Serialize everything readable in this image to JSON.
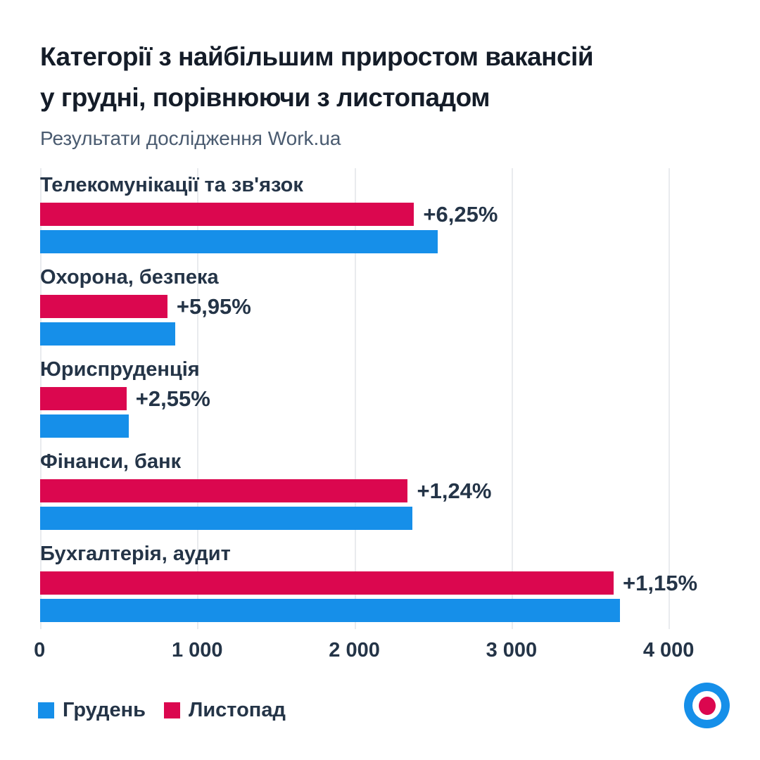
{
  "header": {
    "title_line1": "Категорії з найбільшим приростом вакансій",
    "title_line2": "у грудні, порівнюючи з листопадом",
    "subtitle": "Результати дослідження Work.ua"
  },
  "colors": {
    "december_blue": "#168FE9",
    "november_pink": "#DB074F",
    "title_dark": "#141C28",
    "label_dark": "#243447",
    "subtitle_gray": "#4A5B70",
    "gridline": "#E9EBEE",
    "background": "#FFFFFF"
  },
  "icons": {
    "logo": "workua-bullseye-logo"
  },
  "chart_data": {
    "type": "bar",
    "orientation": "horizontal",
    "title": "Категорії з найбільшим приростом вакансій у грудні, порівнюючи з листопадом",
    "subtitle": "Результати дослідження Work.ua",
    "axis": {
      "min": 0,
      "max": 4380,
      "ticks": [
        0,
        1000,
        2000,
        3000,
        4000
      ],
      "tick_labels": [
        "0",
        "1 000",
        "2 000",
        "3 000",
        "4 000"
      ],
      "grid": true
    },
    "categories": [
      "Телекомунікації та зв'язок",
      "Охорона, безпека",
      "Юриспруденція",
      "Фінанси, банк",
      "Бухгалтерія, аудит"
    ],
    "series": [
      {
        "name": "Листопад",
        "color_key": "november_pink",
        "row": "top",
        "values": [
          2380,
          810,
          550,
          2340,
          3650
        ]
      },
      {
        "name": "Грудень",
        "color_key": "december_blue",
        "row": "bottom",
        "values": [
          2529,
          858,
          564,
          2369,
          3692
        ]
      }
    ],
    "growth_labels": [
      "+6,25%",
      "+5,95%",
      "+2,55%",
      "+1,24%",
      "+1,15%"
    ],
    "legend": [
      {
        "label": "Грудень",
        "color_key": "december_blue"
      },
      {
        "label": "Листопад",
        "color_key": "november_pink"
      }
    ],
    "legend_position": "bottom-left"
  }
}
